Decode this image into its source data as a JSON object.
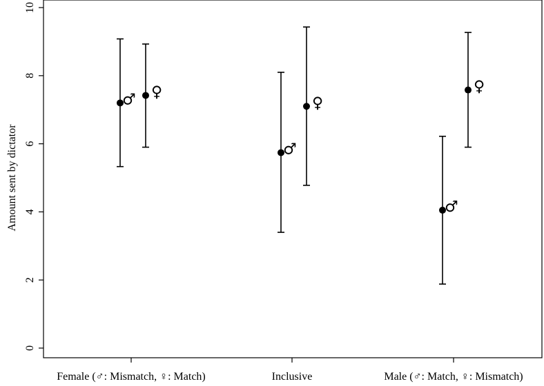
{
  "chart_data": {
    "type": "scatter",
    "title": "",
    "ylabel": "Amount sent by dictator",
    "xlabel": "",
    "ylim": [
      0,
      10
    ],
    "yticks": [
      0,
      2,
      4,
      6,
      8,
      10
    ],
    "categories": [
      "Female (♂: Mismatch, ♀: Match)",
      "Inclusive",
      "Male (♂: Match, ♀: Mismatch)"
    ],
    "grid": false,
    "series": [
      {
        "symbol": "♂",
        "points": [
          {
            "category": "Female (♂: Mismatch, ♀: Match)",
            "mean": 7.2,
            "lower": 5.33,
            "upper": 9.08
          },
          {
            "category": "Inclusive",
            "mean": 5.74,
            "lower": 3.4,
            "upper": 8.1
          },
          {
            "category": "Male (♂: Match, ♀: Mismatch)",
            "mean": 4.05,
            "lower": 1.88,
            "upper": 6.22
          }
        ]
      },
      {
        "symbol": "♀",
        "points": [
          {
            "category": "Female (♂: Mismatch, ♀: Match)",
            "mean": 7.42,
            "lower": 5.9,
            "upper": 8.93
          },
          {
            "category": "Inclusive",
            "mean": 7.1,
            "lower": 4.78,
            "upper": 9.43
          },
          {
            "category": "Male (♂: Match, ♀: Mismatch)",
            "mean": 7.58,
            "lower": 5.9,
            "upper": 9.27
          }
        ]
      }
    ]
  }
}
